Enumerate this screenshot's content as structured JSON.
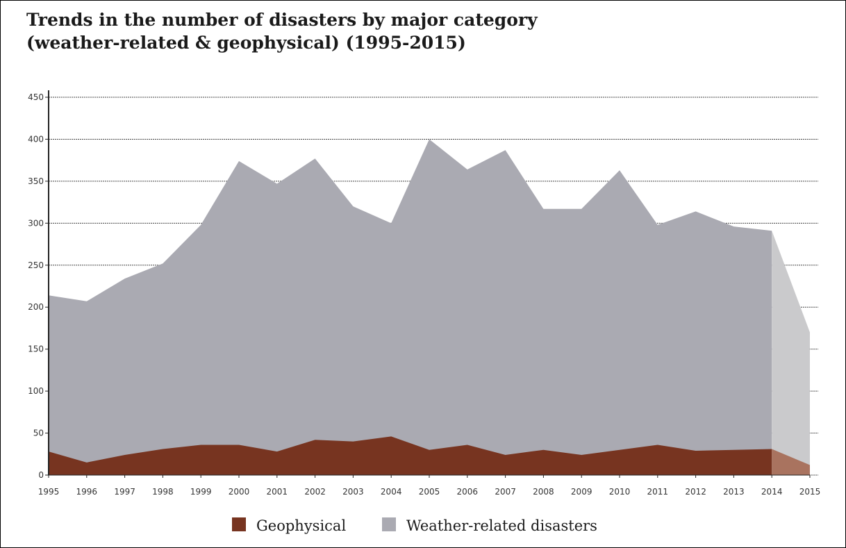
{
  "chart_data": {
    "type": "area",
    "title_line1": "Trends in the number of disasters by major category",
    "title_line2": "(weather-related & geophysical) (1995-2015)",
    "xlabel": "",
    "ylabel": "",
    "ylim": [
      0,
      450
    ],
    "y_ticks": [
      0,
      50,
      100,
      150,
      200,
      250,
      300,
      350,
      400,
      450
    ],
    "categories": [
      "1995",
      "1996",
      "1997",
      "1998",
      "1999",
      "2000",
      "2001",
      "2002",
      "2003",
      "2004",
      "2005",
      "2006",
      "2007",
      "2008",
      "2009",
      "2010",
      "2011",
      "2012",
      "2013",
      "2014",
      "2015"
    ],
    "series": [
      {
        "name": "Geophysical",
        "color": "#773420",
        "highlight_color": "#a9735f",
        "values": [
          28,
          15,
          24,
          31,
          36,
          36,
          28,
          42,
          40,
          46,
          30,
          36,
          24,
          30,
          24,
          30,
          36,
          29,
          30,
          31,
          12
        ]
      },
      {
        "name": "Weather-related disasters",
        "color": "#aaaab2",
        "highlight_color": "#cacacc",
        "values": [
          214,
          207,
          234,
          252,
          298,
          374,
          347,
          377,
          320,
          300,
          400,
          364,
          387,
          317,
          317,
          363,
          298,
          314,
          296,
          291,
          170
        ]
      }
    ],
    "highlight_from": "2014",
    "grid": true,
    "legend_position": "bottom-center"
  }
}
